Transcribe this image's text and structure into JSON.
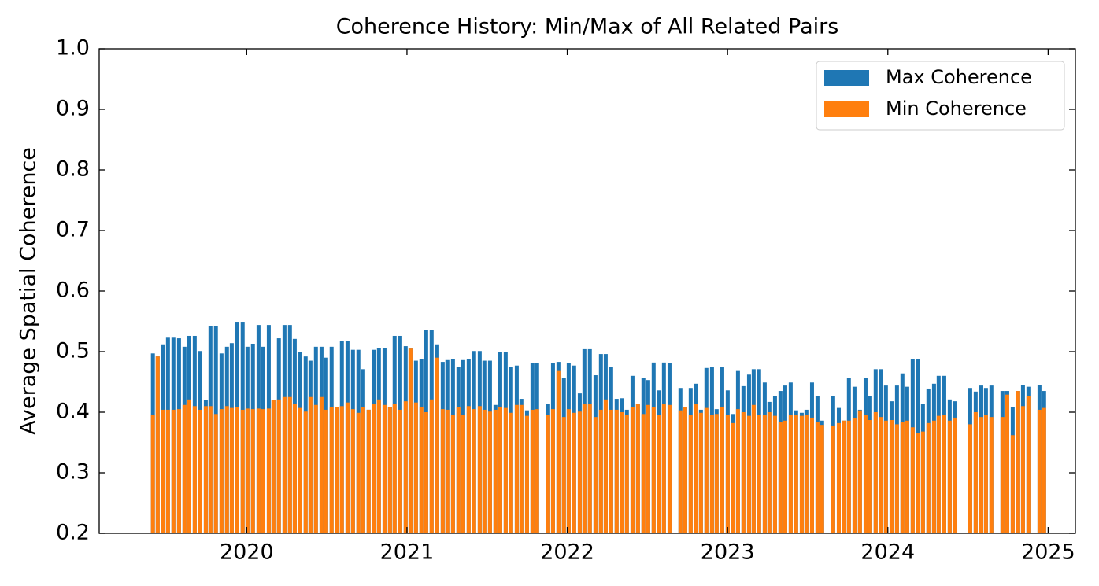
{
  "chart_data": {
    "type": "bar",
    "title": "Coherence History: Min/Max of All Related Pairs",
    "y_label": "Average Spatial Coherence",
    "x": [
      2019.415,
      2019.445,
      2019.479,
      2019.509,
      2019.543,
      2019.578,
      2019.612,
      2019.641,
      2019.676,
      2019.71,
      2019.745,
      2019.774,
      2019.808,
      2019.843,
      2019.877,
      2019.907,
      2019.941,
      2019.975,
      2020.005,
      2020.039,
      2020.074,
      2020.103,
      2020.138,
      2020.167,
      2020.201,
      2020.236,
      2020.27,
      2020.3,
      2020.334,
      2020.368,
      2020.398,
      2020.432,
      2020.467,
      2020.496,
      2020.53,
      2020.565,
      2020.594,
      2020.629,
      2020.663,
      2020.697,
      2020.727,
      2020.761,
      2020.796,
      2020.825,
      2020.86,
      2020.894,
      2020.923,
      2020.958,
      2020.992,
      2021.022,
      2021.056,
      2021.09,
      2021.12,
      2021.154,
      2021.189,
      2021.223,
      2021.252,
      2021.287,
      2021.321,
      2021.351,
      2021.385,
      2021.419,
      2021.454,
      2021.483,
      2021.518,
      2021.552,
      2021.582,
      2021.616,
      2021.65,
      2021.685,
      2021.714,
      2021.749,
      2021.783,
      2021.812,
      2021.881,
      2021.911,
      2021.945,
      2021.979,
      2022.009,
      2022.043,
      2022.078,
      2022.107,
      2022.141,
      2022.176,
      2022.21,
      2022.24,
      2022.274,
      2022.308,
      2022.343,
      2022.372,
      2022.407,
      2022.441,
      2022.475,
      2022.505,
      2022.539,
      2022.574,
      2022.603,
      2022.638,
      2022.706,
      2022.736,
      2022.77,
      2022.804,
      2022.834,
      2022.868,
      2022.903,
      2022.932,
      2022.967,
      2023.001,
      2023.035,
      2023.065,
      2023.099,
      2023.134,
      2023.163,
      2023.197,
      2023.232,
      2023.261,
      2023.296,
      2023.33,
      2023.36,
      2023.394,
      2023.428,
      2023.463,
      2023.492,
      2023.527,
      2023.561,
      2023.59,
      2023.659,
      2023.694,
      2023.728,
      2023.757,
      2023.792,
      2023.826,
      2023.861,
      2023.89,
      2023.924,
      2023.959,
      2023.988,
      2024.023,
      2024.057,
      2024.091,
      2024.121,
      2024.155,
      2024.19,
      2024.219,
      2024.253,
      2024.288,
      2024.317,
      2024.352,
      2024.386,
      2024.416,
      2024.514,
      2024.548,
      2024.583,
      2024.612,
      2024.646,
      2024.715,
      2024.745,
      2024.779,
      2024.813,
      2024.843,
      2024.877,
      2024.946,
      2024.975
    ],
    "series": [
      {
        "name": "Max Coherence",
        "color": "#1f77b4",
        "values": [
          0.497,
          0.492,
          0.512,
          0.523,
          0.523,
          0.522,
          0.508,
          0.526,
          0.526,
          0.501,
          0.42,
          0.542,
          0.542,
          0.497,
          0.508,
          0.514,
          0.548,
          0.548,
          0.508,
          0.513,
          0.544,
          0.508,
          0.544,
          0.42,
          0.522,
          0.544,
          0.544,
          0.521,
          0.499,
          0.492,
          0.485,
          0.508,
          0.508,
          0.49,
          0.508,
          0.408,
          0.518,
          0.518,
          0.503,
          0.503,
          0.471,
          0.404,
          0.503,
          0.506,
          0.506,
          0.408,
          0.526,
          0.526,
          0.509,
          0.505,
          0.485,
          0.488,
          0.536,
          0.536,
          0.512,
          0.483,
          0.486,
          0.488,
          0.475,
          0.486,
          0.488,
          0.501,
          0.501,
          0.485,
          0.485,
          0.412,
          0.499,
          0.499,
          0.475,
          0.477,
          0.422,
          0.403,
          0.481,
          0.481,
          0.413,
          0.481,
          0.483,
          0.457,
          0.481,
          0.477,
          0.431,
          0.504,
          0.504,
          0.461,
          0.496,
          0.496,
          0.475,
          0.422,
          0.423,
          0.404,
          0.46,
          0.413,
          0.456,
          0.453,
          0.482,
          0.436,
          0.482,
          0.481,
          0.44,
          0.409,
          0.44,
          0.447,
          0.404,
          0.473,
          0.474,
          0.405,
          0.474,
          0.436,
          0.397,
          0.468,
          0.443,
          0.462,
          0.471,
          0.471,
          0.449,
          0.417,
          0.427,
          0.435,
          0.444,
          0.449,
          0.403,
          0.399,
          0.404,
          0.449,
          0.426,
          0.386,
          0.426,
          0.407,
          0.386,
          0.456,
          0.442,
          0.404,
          0.456,
          0.426,
          0.471,
          0.471,
          0.444,
          0.418,
          0.444,
          0.464,
          0.442,
          0.487,
          0.487,
          0.413,
          0.439,
          0.447,
          0.46,
          0.46,
          0.421,
          0.418,
          0.44,
          0.434,
          0.444,
          0.44,
          0.444,
          0.435,
          0.435,
          0.409,
          0.435,
          0.445,
          0.442,
          0.445,
          0.435
        ]
      },
      {
        "name": "Min Coherence",
        "color": "#ff7f0e",
        "values": [
          0.395,
          0.492,
          0.404,
          0.404,
          0.404,
          0.405,
          0.412,
          0.421,
          0.41,
          0.404,
          0.41,
          0.41,
          0.397,
          0.405,
          0.41,
          0.407,
          0.408,
          0.404,
          0.406,
          0.405,
          0.406,
          0.405,
          0.406,
          0.42,
          0.421,
          0.425,
          0.425,
          0.413,
          0.407,
          0.401,
          0.425,
          0.412,
          0.425,
          0.404,
          0.408,
          0.408,
          0.41,
          0.416,
          0.405,
          0.399,
          0.408,
          0.404,
          0.414,
          0.421,
          0.412,
          0.408,
          0.413,
          0.404,
          0.418,
          0.505,
          0.416,
          0.408,
          0.4,
          0.421,
          0.49,
          0.405,
          0.404,
          0.395,
          0.408,
          0.396,
          0.41,
          0.405,
          0.41,
          0.404,
          0.401,
          0.404,
          0.408,
          0.407,
          0.399,
          0.412,
          0.412,
          0.394,
          0.404,
          0.405,
          0.396,
          0.405,
          0.468,
          0.392,
          0.405,
          0.399,
          0.401,
          0.413,
          0.414,
          0.392,
          0.404,
          0.421,
          0.404,
          0.404,
          0.4,
          0.395,
          0.408,
          0.413,
          0.397,
          0.412,
          0.408,
          0.395,
          0.413,
          0.412,
          0.403,
          0.408,
          0.395,
          0.413,
          0.399,
          0.407,
          0.395,
          0.397,
          0.409,
          0.395,
          0.382,
          0.405,
          0.4,
          0.394,
          0.412,
          0.395,
          0.395,
          0.4,
          0.394,
          0.384,
          0.386,
          0.396,
          0.396,
          0.394,
          0.396,
          0.391,
          0.384,
          0.379,
          0.378,
          0.382,
          0.386,
          0.386,
          0.39,
          0.403,
          0.395,
          0.387,
          0.4,
          0.392,
          0.386,
          0.387,
          0.38,
          0.384,
          0.386,
          0.375,
          0.365,
          0.368,
          0.382,
          0.386,
          0.394,
          0.396,
          0.386,
          0.391,
          0.38,
          0.4,
          0.392,
          0.395,
          0.392,
          0.392,
          0.429,
          0.362,
          0.435,
          0.41,
          0.427,
          0.404,
          0.407
        ]
      }
    ],
    "xlim": [
      2019.08,
      2025.17
    ],
    "xticks": [
      2020,
      2021,
      2022,
      2023,
      2024,
      2025
    ],
    "ylim": [
      0.2,
      1.0
    ],
    "yticks": [
      0.2,
      0.3,
      0.4,
      0.5,
      0.6,
      0.7,
      0.8,
      0.9,
      {
        "value": 1,
        "label": "1.0"
      }
    ],
    "legend": "upper right"
  }
}
